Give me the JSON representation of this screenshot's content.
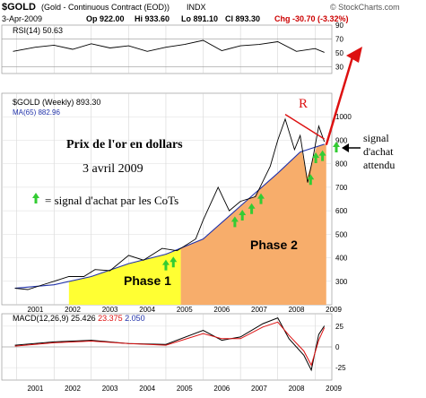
{
  "header": {
    "symbol": "$GOLD",
    "description": "(Gold - Continuous Contract (EOD))",
    "exchange": "INDX",
    "copyright": "© StockCharts.com",
    "date": "3-Apr-2009",
    "open": "Op 922.00",
    "high": "Hi 933.60",
    "low": "Lo 891.10",
    "close": "Cl 893.30",
    "change": "Chg -30.70 (-3.32%)",
    "change_color": "#cc0000"
  },
  "chart_data": [
    {
      "type": "line",
      "panel": "rsi",
      "legend": "RSI(14) 50.63",
      "x": [
        2000.9,
        2001.5,
        2002.0,
        2002.5,
        2003.0,
        2003.5,
        2004.0,
        2004.5,
        2005.0,
        2005.5,
        2006.0,
        2006.5,
        2007.0,
        2007.5,
        2008.0,
        2008.5,
        2009.0,
        2009.25
      ],
      "y": [
        52,
        58,
        61,
        55,
        63,
        57,
        60,
        52,
        58,
        62,
        68,
        53,
        60,
        62,
        66,
        52,
        56,
        50.63
      ],
      "ylim": [
        20,
        90
      ],
      "yticks": [
        30,
        50,
        70,
        90
      ],
      "reference_lines": [
        30,
        70
      ]
    },
    {
      "type": "line",
      "panel": "price",
      "legend": [
        "$GOLD (Weekly) 893.30",
        "MA(65) 882.96"
      ],
      "series": [
        {
          "name": "$GOLD (Weekly) 893.30",
          "color": "#000000",
          "x": [
            2000.95,
            2001.3,
            2001.6,
            2002.0,
            2002.4,
            2002.8,
            2003.1,
            2003.5,
            2004.0,
            2004.4,
            2004.9,
            2005.3,
            2005.8,
            2006.0,
            2006.4,
            2006.7,
            2007.0,
            2007.4,
            2007.8,
            2008.0,
            2008.2,
            2008.45,
            2008.6,
            2008.8,
            2008.95,
            2009.1,
            2009.25
          ],
          "y": [
            270,
            265,
            280,
            300,
            320,
            320,
            350,
            345,
            410,
            390,
            440,
            430,
            480,
            560,
            700,
            600,
            640,
            660,
            790,
            900,
            990,
            860,
            920,
            720,
            830,
            960,
            893.3
          ]
        },
        {
          "name": "MA(65) 882.96",
          "color": "#2233aa",
          "x": [
            2000.95,
            2002.0,
            2003.0,
            2004.0,
            2005.0,
            2006.0,
            2007.0,
            2008.0,
            2008.6,
            2009.25
          ],
          "y": [
            270,
            285,
            320,
            375,
            415,
            480,
            620,
            760,
            850,
            882.96
          ]
        }
      ],
      "ylim": [
        200,
        1100
      ],
      "yticks": [
        300,
        400,
        500,
        600,
        700,
        800,
        900,
        1000
      ],
      "xticks": [
        "2001",
        "2002",
        "2003",
        "2004",
        "2005",
        "2006",
        "2007",
        "2008",
        "2009"
      ],
      "annotations": {
        "title_line1": "Prix de l'or en dollars",
        "title_line2": "3 avril 2009",
        "legend_text": "= signal d'achat par les CoTs",
        "phase1": "Phase 1",
        "phase2": "Phase 2",
        "resistance_label": "R",
        "expected_signal": [
          "signal",
          "d'achat",
          "attendu"
        ]
      },
      "buy_signals": [
        2005.0,
        2005.2,
        2006.85,
        2007.05,
        2007.3,
        2007.55,
        2008.88,
        2009.02,
        2009.2
      ],
      "phase1_range": [
        2002.4,
        2005.4
      ],
      "phase2_range": [
        2005.4,
        2009.3
      ],
      "colors": {
        "phase1": "#ffff33",
        "phase2": "#f7ad6b",
        "signal_arrow": "#33cc33",
        "annotation": "#dd1111"
      }
    },
    {
      "type": "line",
      "panel": "macd",
      "legend": {
        "label": "MACD(12,26,9)",
        "macd": "25.426",
        "signal": "23.375",
        "histogram": "2.050"
      },
      "series": [
        {
          "name": "MACD",
          "color": "#000000",
          "x": [
            2000.95,
            2002.0,
            2003.0,
            2004.0,
            2005.0,
            2006.0,
            2006.5,
            2007.0,
            2007.6,
            2008.0,
            2008.3,
            2008.7,
            2008.9,
            2009.1,
            2009.25
          ],
          "y": [
            2,
            6,
            8,
            4,
            3,
            20,
            8,
            12,
            28,
            35,
            10,
            -10,
            -28,
            15,
            25.426
          ]
        },
        {
          "name": "Signal",
          "color": "#dd1111",
          "x": [
            2000.95,
            2002.0,
            2003.0,
            2004.0,
            2005.0,
            2006.0,
            2006.5,
            2007.0,
            2007.6,
            2008.0,
            2008.3,
            2008.7,
            2008.9,
            2009.1,
            2009.25
          ],
          "y": [
            1,
            5,
            7,
            4,
            2,
            16,
            10,
            10,
            24,
            30,
            14,
            -5,
            -22,
            8,
            23.375
          ]
        }
      ],
      "ylim": [
        -40,
        40
      ],
      "yticks": [
        -25,
        0,
        25
      ],
      "xticks": [
        "2001",
        "2002",
        "2003",
        "2004",
        "2005",
        "2006",
        "2007",
        "2008",
        "2009"
      ]
    }
  ]
}
